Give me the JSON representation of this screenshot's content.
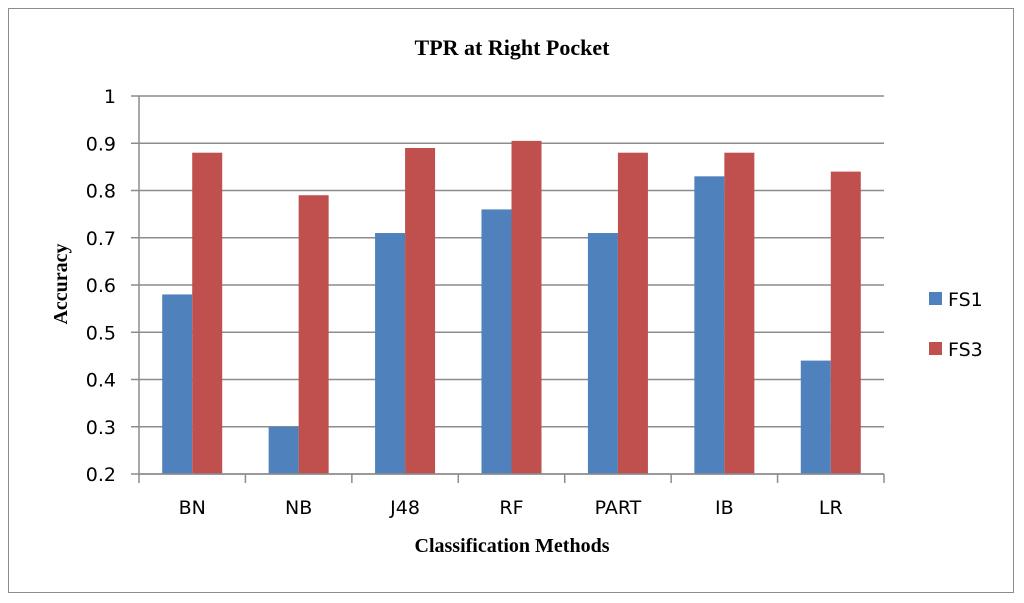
{
  "chart_data": {
    "type": "bar",
    "title": "TPR at Right Pocket",
    "xlabel": "Classification Methods",
    "ylabel": "Accuracy",
    "categories": [
      "BN",
      "NB",
      "J48",
      "RF",
      "PART",
      "IB",
      "LR"
    ],
    "series": [
      {
        "name": "FS1",
        "color": "#4f81bd",
        "values": [
          0.58,
          0.3,
          0.71,
          0.76,
          0.71,
          0.83,
          0.44
        ]
      },
      {
        "name": "FS3",
        "color": "#c0504d",
        "values": [
          0.88,
          0.79,
          0.89,
          0.905,
          0.88,
          0.88,
          0.84
        ]
      }
    ],
    "ylim": [
      0.2,
      1
    ],
    "yticks": [
      "0.2",
      "0.3",
      "0.4",
      "0.5",
      "0.6",
      "0.7",
      "0.8",
      "0.9",
      "1"
    ],
    "grid": true,
    "legend_position": "right"
  }
}
